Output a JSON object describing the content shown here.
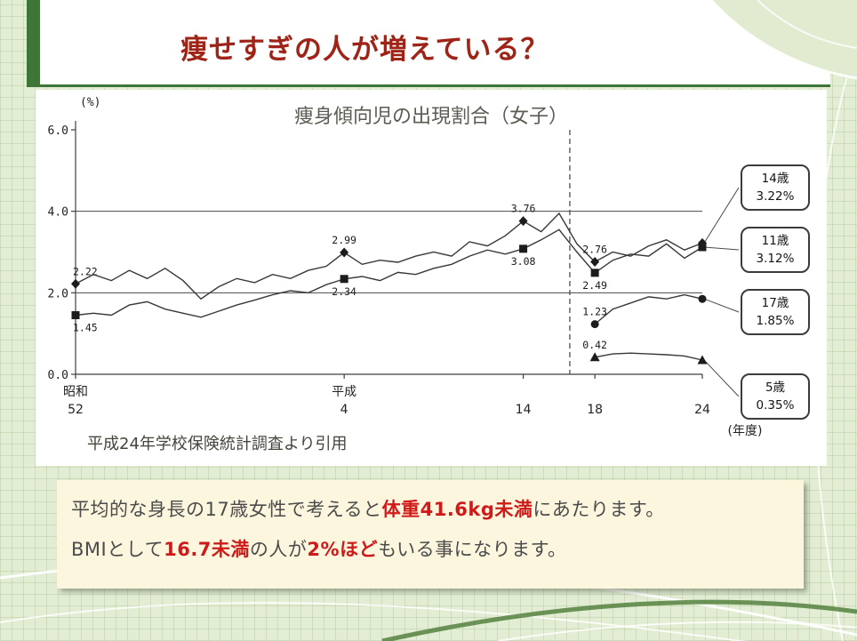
{
  "slide": {
    "title": "痩せすぎの人が増えている？"
  },
  "note": {
    "line1": [
      "平均的な身長の17歳女性で考えると",
      "体重41.6kg未満",
      "にあたります。"
    ],
    "line2": [
      "BMIとして",
      "16.7未満",
      "の人が",
      "2%ほど",
      "もいる事になります。"
    ]
  },
  "chart_data": {
    "type": "line",
    "title": "痩身傾向児の出現割合（女子）",
    "ylabel": "(%)",
    "xlabel": "(年度)",
    "source": "平成24年学校保険統計調査より引用",
    "ylim": [
      0,
      6
    ],
    "x_range": [
      0,
      35
    ],
    "y_ticks": [
      {
        "v": 0,
        "label": "0.0"
      },
      {
        "v": 2,
        "label": "2.0"
      },
      {
        "v": 4,
        "label": "4.0"
      },
      {
        "v": 6,
        "label": "6.0"
      }
    ],
    "y_gridlines": [
      2,
      4
    ],
    "x_ticks": [
      {
        "pos": 0,
        "top": "昭和",
        "bottom": "52"
      },
      {
        "pos": 15,
        "top": "平成",
        "bottom": "4"
      },
      {
        "pos": 25,
        "bottom": "14"
      },
      {
        "pos": 29,
        "bottom": "18"
      },
      {
        "pos": 35,
        "bottom": "24"
      }
    ],
    "dashed_x": 27.6,
    "series": [
      {
        "name": "14歳",
        "marker": "diamond",
        "points": [
          [
            0,
            2.22
          ],
          [
            1,
            2.45
          ],
          [
            2,
            2.3
          ],
          [
            3,
            2.55
          ],
          [
            4,
            2.35
          ],
          [
            5,
            2.6
          ],
          [
            6,
            2.3
          ],
          [
            7,
            1.85
          ],
          [
            8,
            2.15
          ],
          [
            9,
            2.35
          ],
          [
            10,
            2.25
          ],
          [
            11,
            2.45
          ],
          [
            12,
            2.35
          ],
          [
            13,
            2.55
          ],
          [
            14,
            2.65
          ],
          [
            15,
            2.99
          ],
          [
            16,
            2.7
          ],
          [
            17,
            2.8
          ],
          [
            18,
            2.75
          ],
          [
            19,
            2.9
          ],
          [
            20,
            3.0
          ],
          [
            21,
            2.9
          ],
          [
            22,
            3.25
          ],
          [
            23,
            3.15
          ],
          [
            24,
            3.4
          ],
          [
            25,
            3.76
          ],
          [
            26,
            3.5
          ],
          [
            27,
            3.95
          ],
          [
            28,
            3.2
          ],
          [
            29,
            2.76
          ],
          [
            30,
            3.0
          ],
          [
            31,
            2.9
          ],
          [
            32,
            3.15
          ],
          [
            33,
            3.3
          ],
          [
            34,
            3.05
          ],
          [
            35,
            3.22
          ]
        ],
        "labels": [
          {
            "x": 0,
            "y": 2.22,
            "text": "2.22",
            "pos": "above"
          },
          {
            "x": 15,
            "y": 2.99,
            "text": "2.99",
            "pos": "above"
          },
          {
            "x": 25,
            "y": 3.76,
            "text": "3.76",
            "pos": "above"
          },
          {
            "x": 29,
            "y": 2.76,
            "text": "2.76",
            "pos": "above"
          }
        ]
      },
      {
        "name": "11歳",
        "marker": "square",
        "points": [
          [
            0,
            1.45
          ],
          [
            1,
            1.5
          ],
          [
            2,
            1.45
          ],
          [
            3,
            1.7
          ],
          [
            4,
            1.78
          ],
          [
            5,
            1.6
          ],
          [
            6,
            1.5
          ],
          [
            7,
            1.4
          ],
          [
            8,
            1.55
          ],
          [
            9,
            1.7
          ],
          [
            10,
            1.82
          ],
          [
            11,
            1.95
          ],
          [
            12,
            2.05
          ],
          [
            13,
            2.0
          ],
          [
            14,
            2.2
          ],
          [
            15,
            2.34
          ],
          [
            16,
            2.4
          ],
          [
            17,
            2.3
          ],
          [
            18,
            2.5
          ],
          [
            19,
            2.45
          ],
          [
            20,
            2.6
          ],
          [
            21,
            2.7
          ],
          [
            22,
            2.9
          ],
          [
            23,
            3.05
          ],
          [
            24,
            2.95
          ],
          [
            25,
            3.08
          ],
          [
            26,
            3.3
          ],
          [
            27,
            3.55
          ],
          [
            28,
            3.0
          ],
          [
            29,
            2.49
          ],
          [
            30,
            2.8
          ],
          [
            31,
            2.95
          ],
          [
            32,
            2.9
          ],
          [
            33,
            3.2
          ],
          [
            34,
            2.85
          ],
          [
            35,
            3.12
          ]
        ],
        "labels": [
          {
            "x": 0,
            "y": 1.45,
            "text": "1.45",
            "pos": "below"
          },
          {
            "x": 15,
            "y": 2.34,
            "text": "2.34",
            "pos": "below"
          },
          {
            "x": 25,
            "y": 3.08,
            "text": "3.08",
            "pos": "below"
          },
          {
            "x": 29,
            "y": 2.49,
            "text": "2.49",
            "pos": "below"
          }
        ]
      },
      {
        "name": "17歳",
        "marker": "circle",
        "points": [
          [
            29,
            1.23
          ],
          [
            30,
            1.6
          ],
          [
            31,
            1.75
          ],
          [
            32,
            1.9
          ],
          [
            33,
            1.85
          ],
          [
            34,
            1.95
          ],
          [
            35,
            1.85
          ]
        ],
        "labels": [
          {
            "x": 29,
            "y": 1.23,
            "text": "1.23",
            "pos": "above"
          }
        ]
      },
      {
        "name": "5歳",
        "marker": "triangle",
        "points": [
          [
            29,
            0.42
          ],
          [
            30,
            0.5
          ],
          [
            31,
            0.52
          ],
          [
            32,
            0.5
          ],
          [
            33,
            0.48
          ],
          [
            34,
            0.45
          ],
          [
            35,
            0.35
          ]
        ],
        "labels": [
          {
            "x": 29,
            "y": 0.42,
            "text": "0.42",
            "pos": "above"
          }
        ]
      }
    ],
    "callouts": [
      {
        "age": "14歳",
        "value": "3.22%"
      },
      {
        "age": "11歳",
        "value": "3.12%"
      },
      {
        "age": "17歳",
        "value": "1.85%"
      },
      {
        "age": "5歳",
        "value": "0.35%"
      }
    ]
  }
}
